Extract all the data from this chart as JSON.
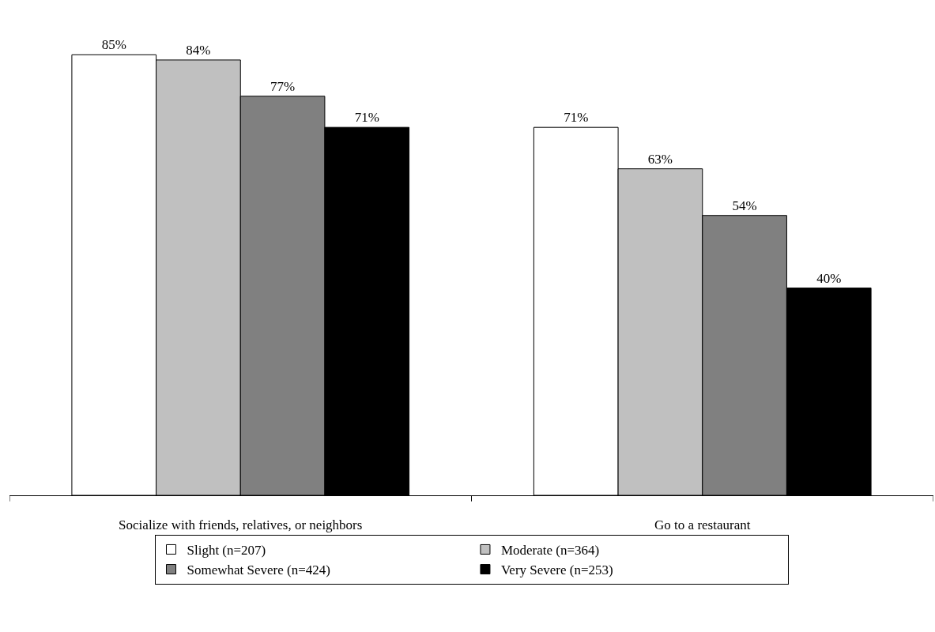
{
  "chart_data": {
    "type": "bar",
    "categories": [
      "Socialize with friends, relatives, or neighbors",
      "Go to a restaurant"
    ],
    "series": [
      {
        "name": "Slight (n=207)",
        "color": "#ffffff",
        "values": [
          85,
          71
        ],
        "value_labels": [
          "85%",
          "71%"
        ]
      },
      {
        "name": "Moderate (n=364)",
        "color": "#c0c0c0",
        "values": [
          84,
          63
        ],
        "value_labels": [
          "84%",
          "63%"
        ]
      },
      {
        "name": "Somewhat Severe (n=424)",
        "color": "#808080",
        "values": [
          77,
          54
        ],
        "value_labels": [
          "77%",
          "54%"
        ]
      },
      {
        "name": "Very Severe (n=253)",
        "color": "#000000",
        "values": [
          71,
          40
        ],
        "value_labels": [
          "71%",
          "40%"
        ]
      }
    ],
    "tick_labels": "x",
    "legend": "bottom",
    "grid": false
  }
}
